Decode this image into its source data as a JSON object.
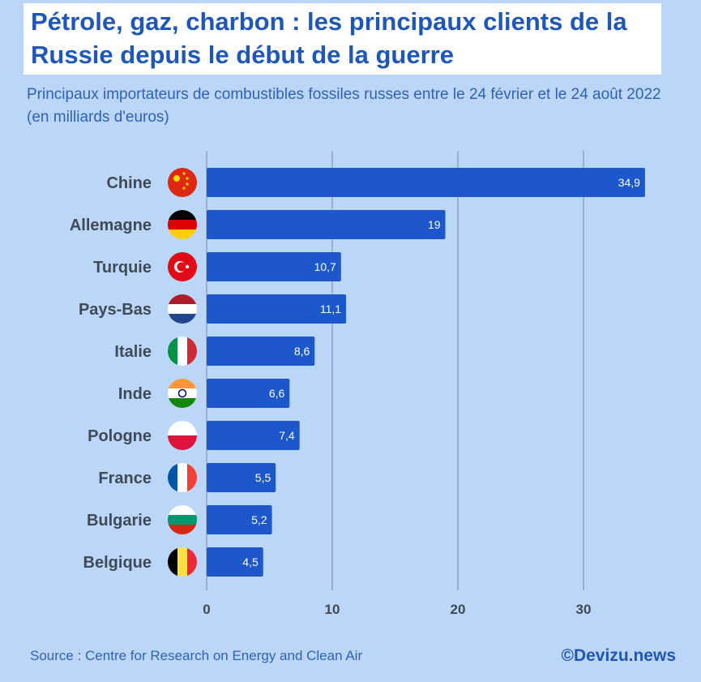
{
  "title": "Pétrole, gaz, charbon : les principaux clients de la Russie depuis le début de la guerre",
  "subtitle": "Principaux importateurs de combustibles fossiles russes entre le 24 février et le 24 août 2022 (en milliards d'euros)",
  "source": "Source : Centre for Research on Energy and Clean Air",
  "brand": "©Devizu.news",
  "colors": {
    "bar": "#1c58cc",
    "background": "#bcd6f7",
    "title": "#1f57b9"
  },
  "chart_data": {
    "type": "bar",
    "orientation": "horizontal",
    "categories": [
      "Chine",
      "Allemagne",
      "Turquie",
      "Pays-Bas",
      "Italie",
      "Inde",
      "Pologne",
      "France",
      "Bulgarie",
      "Belgique"
    ],
    "values": [
      34.9,
      19,
      10.7,
      11.1,
      8.6,
      6.6,
      7.4,
      5.5,
      5.2,
      4.5
    ],
    "value_labels": [
      "34,9",
      "19",
      "10,7",
      "11,1",
      "8,6",
      "6,6",
      "7,4",
      "5,5",
      "5,2",
      "4,5"
    ],
    "flags": [
      "china-flag",
      "germany-flag",
      "turkey-flag",
      "netherlands-flag",
      "italy-flag",
      "india-flag",
      "poland-flag",
      "france-flag",
      "bulgaria-flag",
      "belgium-flag"
    ],
    "xticks": [
      "0",
      "10",
      "20",
      "30"
    ],
    "xlim": [
      0,
      35
    ],
    "grid": true
  }
}
